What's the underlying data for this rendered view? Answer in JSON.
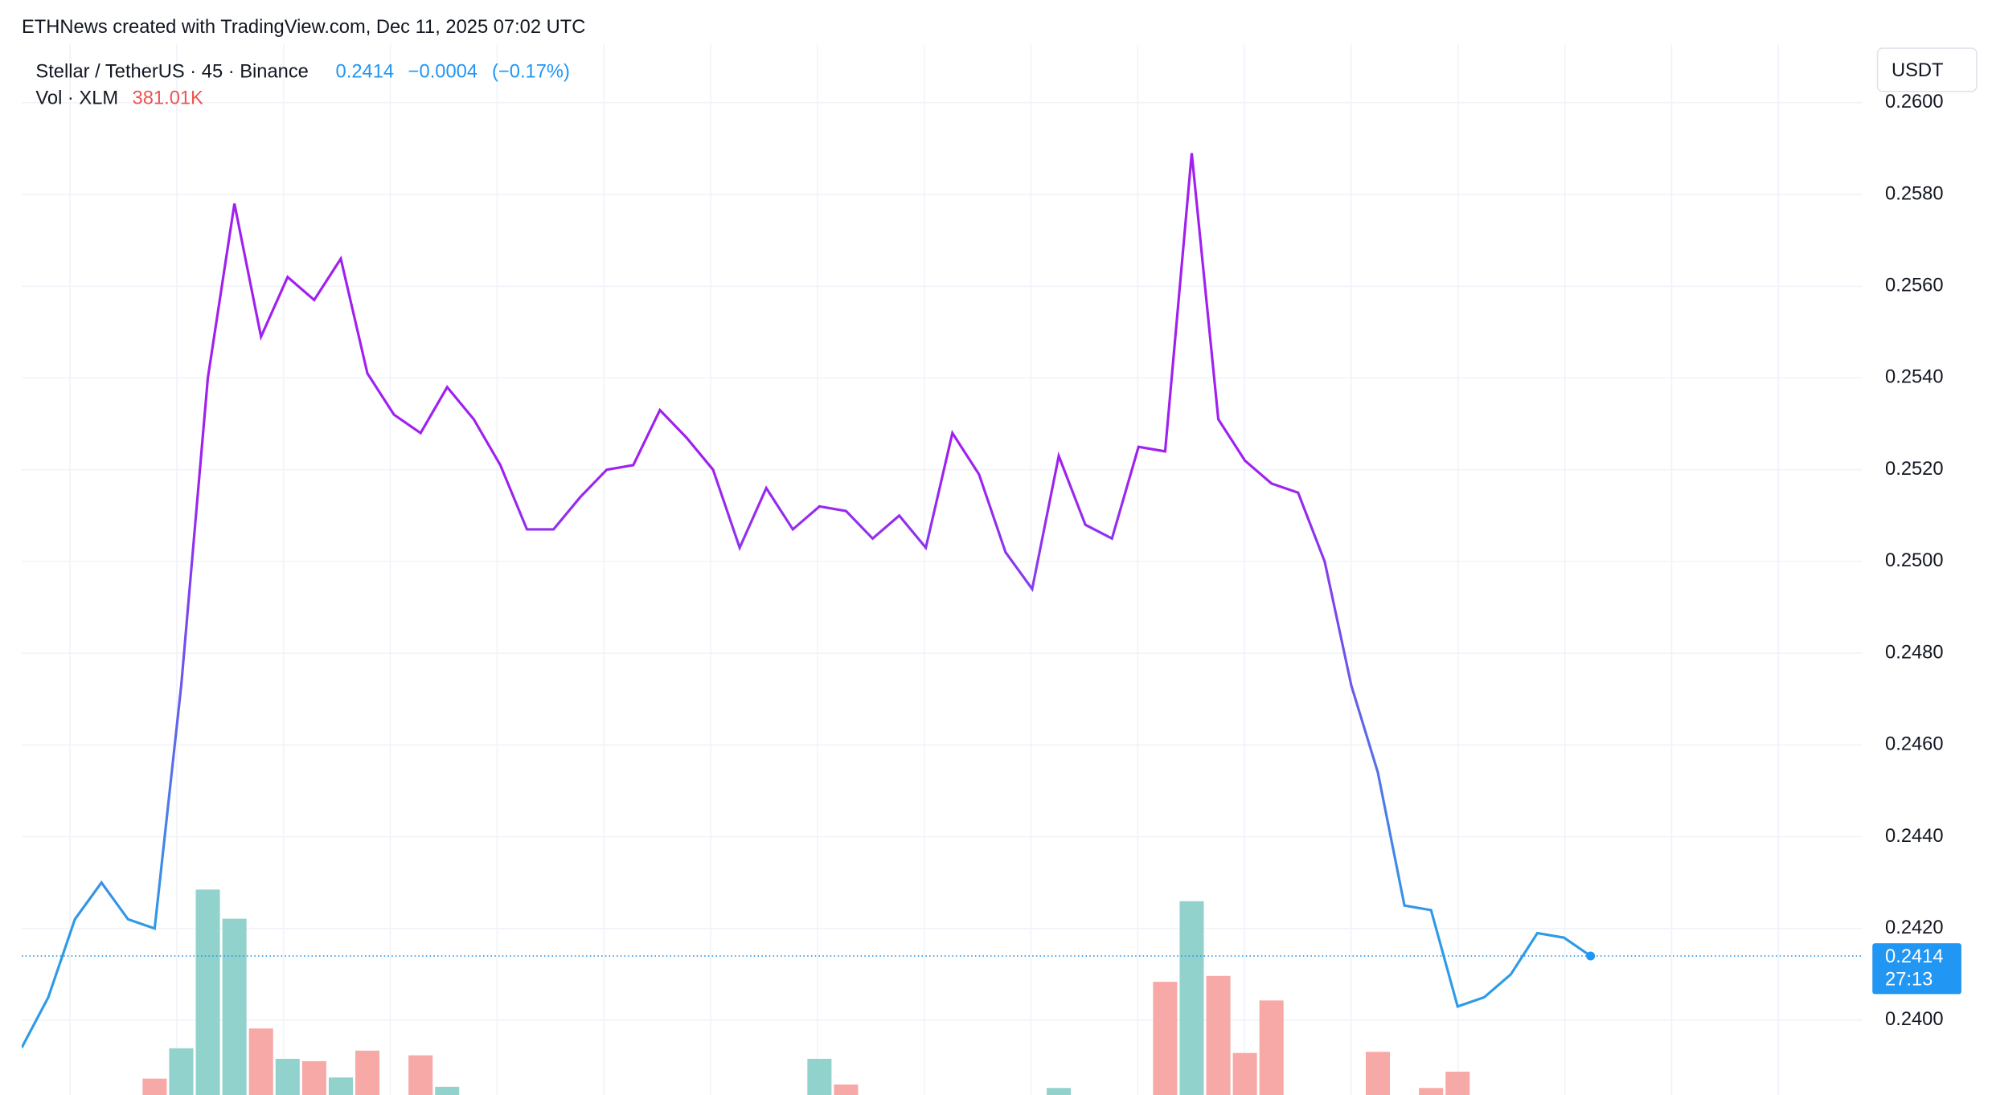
{
  "header": {
    "credit": "ETHNews created with TradingView.com, Dec 11, 2025 07:02 UTC"
  },
  "legend": {
    "symbol": "Stellar / TetherUS · 45 · Binance",
    "last": "0.2414",
    "change": "−0.0004",
    "change_pct": "(−0.17%)",
    "volume_label": "Vol · XLM",
    "volume_value": "381.01K"
  },
  "chart_data": {
    "type": "line",
    "currency": "USDT",
    "values": [
      0.2394,
      0.2405,
      0.2422,
      0.243,
      0.2422,
      0.242,
      0.2473,
      0.254,
      0.2578,
      0.2549,
      0.2562,
      0.2557,
      0.2566,
      0.2541,
      0.2532,
      0.2528,
      0.2538,
      0.2531,
      0.2521,
      0.2507,
      0.2507,
      0.2514,
      0.252,
      0.2521,
      0.2533,
      0.2527,
      0.252,
      0.2503,
      0.2516,
      0.2507,
      0.2512,
      0.2511,
      0.2505,
      0.251,
      0.2503,
      0.2528,
      0.2519,
      0.2502,
      0.2494,
      0.2523,
      0.2508,
      0.2505,
      0.2525,
      0.2524,
      0.2589,
      0.2531,
      0.2522,
      0.2517,
      0.2515,
      0.25,
      0.2473,
      0.2454,
      0.2425,
      0.2424,
      0.2403,
      0.2405,
      0.241,
      0.2419,
      0.2418,
      0.2414
    ],
    "color_low": "#2e9be6",
    "color_high": "#a020f0",
    "ylim": [
      0.23837,
      0.26127
    ],
    "yticks": [
      {
        "value": 0.24,
        "label": "0.2400"
      },
      {
        "value": 0.242,
        "label": "0.2420"
      },
      {
        "value": 0.244,
        "label": "0.2440"
      },
      {
        "value": 0.246,
        "label": "0.2460"
      },
      {
        "value": 0.248,
        "label": "0.2480"
      },
      {
        "value": 0.25,
        "label": "0.2500"
      },
      {
        "value": 0.252,
        "label": "0.2520"
      },
      {
        "value": 0.254,
        "label": "0.2540"
      },
      {
        "value": 0.256,
        "label": "0.2560"
      },
      {
        "value": 0.258,
        "label": "0.2580"
      },
      {
        "value": 0.26,
        "label": "0.2600"
      }
    ],
    "grid": true,
    "last_price": {
      "value": 0.2414,
      "label": "0.2414",
      "countdown": "27:13",
      "color": "#2196f3"
    },
    "volume": {
      "vlim": [
        0,
        900
      ],
      "values": [
        null,
        null,
        null,
        null,
        null,
        14,
        40,
        176,
        151,
        57,
        31,
        29,
        15,
        38,
        null,
        34,
        7,
        null,
        null,
        null,
        null,
        null,
        null,
        null,
        null,
        null,
        null,
        null,
        null,
        null,
        31,
        9,
        null,
        null,
        null,
        null,
        null,
        null,
        null,
        6,
        null,
        null,
        null,
        97,
        166,
        102,
        36,
        81,
        null,
        null,
        null,
        37,
        null,
        6,
        20,
        null,
        null,
        null,
        null,
        null
      ],
      "colors": [
        null,
        null,
        null,
        null,
        null,
        "#f7a9a7",
        "#92d2cc",
        "#92d2cc",
        "#92d2cc",
        "#f7a9a7",
        "#92d2cc",
        "#f7a9a7",
        "#92d2cc",
        "#f7a9a7",
        null,
        "#f7a9a7",
        "#92d2cc",
        null,
        null,
        null,
        null,
        null,
        null,
        null,
        null,
        null,
        null,
        null,
        null,
        null,
        "#92d2cc",
        "#f7a9a7",
        null,
        null,
        null,
        null,
        null,
        null,
        null,
        "#92d2cc",
        null,
        null,
        null,
        "#f7a9a7",
        "#92d2cc",
        "#f7a9a7",
        "#f7a9a7",
        "#f7a9a7",
        null,
        null,
        null,
        "#f7a9a7",
        null,
        "#f7a9a7",
        "#f7a9a7",
        null,
        null,
        null,
        null,
        null
      ]
    }
  }
}
